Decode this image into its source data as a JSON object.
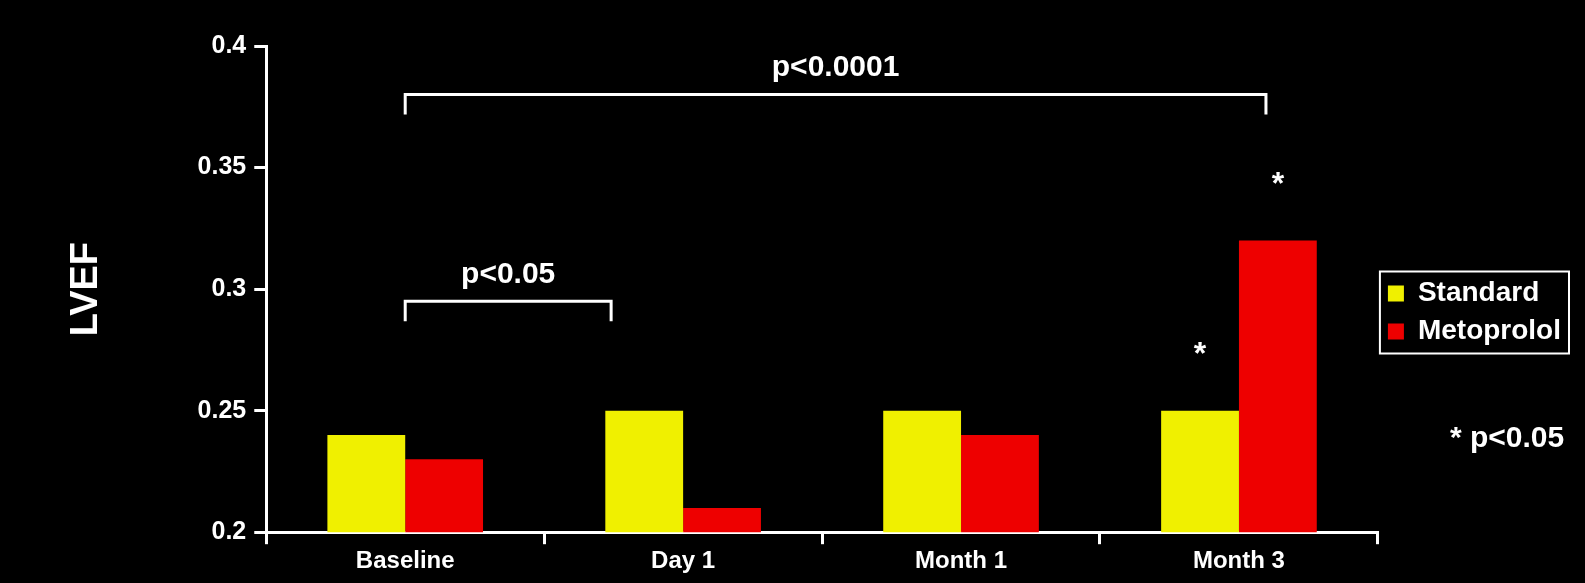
{
  "chart_data": {
    "type": "bar",
    "ylabel": "LVEF",
    "categories": [
      "Baseline",
      "Day 1",
      "Month 1",
      "Month 3"
    ],
    "series": [
      {
        "name": "Standard",
        "color": "#f0f000",
        "values": [
          0.24,
          0.25,
          0.25,
          0.25
        ]
      },
      {
        "name": "Metoprolol",
        "color": "#ee0000",
        "values": [
          0.23,
          0.21,
          0.24,
          0.32
        ]
      }
    ],
    "ylim": [
      0.2,
      0.4
    ],
    "yticks": [
      0.2,
      0.25,
      0.3,
      0.35,
      0.4
    ],
    "grid": false,
    "legend": "right",
    "annotations": [
      "p<0.0001",
      "p<0.05",
      {
        "text": "*",
        "x": "Month 3",
        "y": 0.25
      },
      {
        "text": "*",
        "x": "Month 3",
        "y": 0.32
      },
      "* p<0.05"
    ]
  }
}
